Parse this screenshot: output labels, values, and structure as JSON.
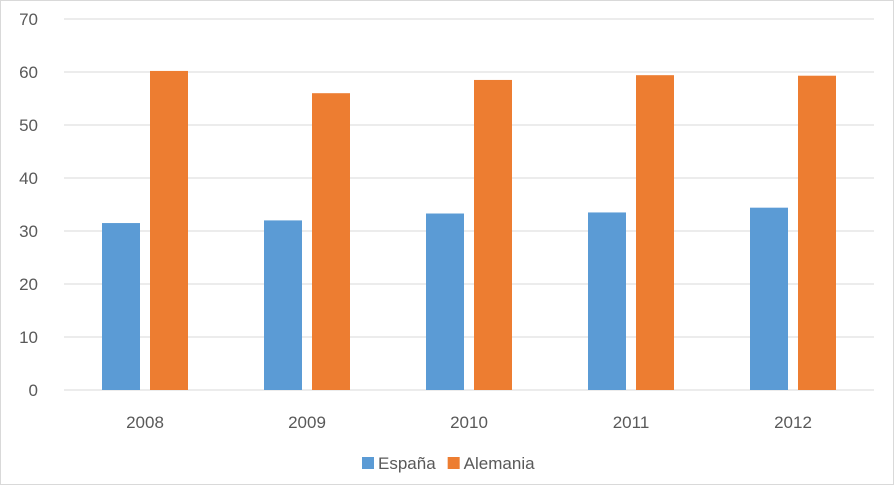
{
  "chart_data": {
    "type": "bar",
    "categories": [
      "2008",
      "2009",
      "2010",
      "2011",
      "2012"
    ],
    "series": [
      {
        "name": "España",
        "values": [
          31.5,
          32.0,
          33.3,
          33.5,
          34.4
        ],
        "color": "#5B9BD5"
      },
      {
        "name": "Alemania",
        "values": [
          60.2,
          56.0,
          58.5,
          59.4,
          59.3
        ],
        "color": "#ED7D31"
      }
    ],
    "y_ticks": [
      "0",
      "10",
      "20",
      "30",
      "40",
      "50",
      "60",
      "70"
    ],
    "ylim": [
      0,
      70
    ],
    "grid": true,
    "legend_position": "bottom",
    "title": "",
    "xlabel": "",
    "ylabel": ""
  }
}
